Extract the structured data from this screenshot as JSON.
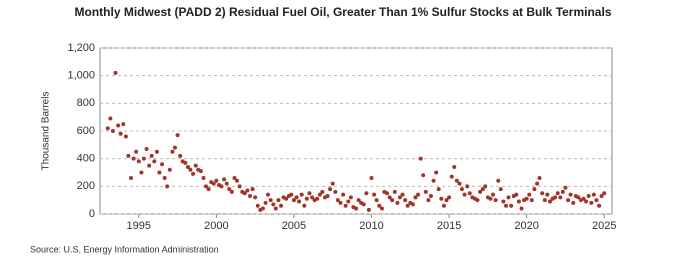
{
  "chart_data": {
    "type": "scatter",
    "title": "Monthly Midwest (PADD 2) Residual Fuel Oil, Greater Than 1% Sulfur Stocks at Bulk Terminals",
    "y_label": "Thousand Barrels",
    "source": "Source: U.S. Energy Information Administration",
    "color": "#a3342a",
    "grid": true,
    "xlim": [
      1992.5,
      2025.5
    ],
    "xticks": [
      1995,
      2000,
      2005,
      2010,
      2015,
      2020,
      2025
    ],
    "ylim": [
      0,
      1200
    ],
    "yticks": [
      0,
      200,
      400,
      600,
      800,
      {
        "value": 1000,
        "label": "1,000"
      },
      {
        "value": 1200,
        "label": "1,200"
      }
    ],
    "x": [
      1993.0,
      1993.17,
      1993.33,
      1993.5,
      1993.67,
      1993.83,
      1994.0,
      1994.17,
      1994.33,
      1994.5,
      1994.67,
      1994.83,
      1995.0,
      1995.17,
      1995.33,
      1995.5,
      1995.67,
      1995.83,
      1996.0,
      1996.17,
      1996.33,
      1996.5,
      1996.67,
      1996.83,
      1997.0,
      1997.17,
      1997.33,
      1997.5,
      1997.67,
      1997.83,
      1998.0,
      1998.17,
      1998.33,
      1998.5,
      1998.67,
      1998.83,
      1999.0,
      1999.17,
      1999.33,
      1999.5,
      1999.67,
      1999.83,
      2000.0,
      2000.17,
      2000.33,
      2000.5,
      2000.67,
      2000.83,
      2001.0,
      2001.17,
      2001.33,
      2001.5,
      2001.67,
      2001.83,
      2002.0,
      2002.17,
      2002.33,
      2002.5,
      2002.67,
      2002.83,
      2003.0,
      2003.17,
      2003.33,
      2003.5,
      2003.67,
      2003.83,
      2004.0,
      2004.17,
      2004.33,
      2004.5,
      2004.67,
      2004.83,
      2005.0,
      2005.17,
      2005.33,
      2005.5,
      2005.67,
      2005.83,
      2006.0,
      2006.17,
      2006.33,
      2006.5,
      2006.67,
      2006.83,
      2007.0,
      2007.17,
      2007.33,
      2007.5,
      2007.67,
      2007.83,
      2008.0,
      2008.17,
      2008.33,
      2008.5,
      2008.67,
      2008.83,
      2009.0,
      2009.17,
      2009.33,
      2009.5,
      2009.67,
      2009.83,
      2010.0,
      2010.17,
      2010.33,
      2010.5,
      2010.67,
      2010.83,
      2011.0,
      2011.17,
      2011.33,
      2011.5,
      2011.67,
      2011.83,
      2012.0,
      2012.17,
      2012.33,
      2012.5,
      2012.67,
      2012.83,
      2013.0,
      2013.17,
      2013.33,
      2013.5,
      2013.67,
      2013.83,
      2014.0,
      2014.17,
      2014.33,
      2014.5,
      2014.67,
      2014.83,
      2015.0,
      2015.17,
      2015.33,
      2015.5,
      2015.67,
      2015.83,
      2016.0,
      2016.17,
      2016.33,
      2016.5,
      2016.67,
      2016.83,
      2017.0,
      2017.17,
      2017.33,
      2017.5,
      2017.67,
      2017.83,
      2018.0,
      2018.17,
      2018.33,
      2018.5,
      2018.67,
      2018.83,
      2019.0,
      2019.17,
      2019.33,
      2019.5,
      2019.67,
      2019.83,
      2020.0,
      2020.17,
      2020.33,
      2020.5,
      2020.67,
      2020.83,
      2021.0,
      2021.17,
      2021.33,
      2021.5,
      2021.67,
      2021.83,
      2022.0,
      2022.17,
      2022.33,
      2022.5,
      2022.67,
      2022.83,
      2023.0,
      2023.17,
      2023.33,
      2023.5,
      2023.67,
      2023.83,
      2024.0,
      2024.17,
      2024.33,
      2024.5,
      2024.67,
      2024.83,
      2025.0
    ],
    "values": [
      620,
      690,
      600,
      1020,
      640,
      580,
      650,
      560,
      420,
      260,
      400,
      450,
      380,
      300,
      400,
      470,
      350,
      420,
      380,
      450,
      300,
      360,
      260,
      200,
      320,
      450,
      480,
      570,
      420,
      380,
      370,
      340,
      320,
      290,
      350,
      320,
      310,
      260,
      200,
      180,
      230,
      220,
      240,
      210,
      200,
      250,
      220,
      180,
      160,
      260,
      240,
      200,
      160,
      150,
      170,
      130,
      180,
      120,
      60,
      30,
      40,
      80,
      140,
      100,
      70,
      40,
      100,
      60,
      120,
      110,
      130,
      140,
      100,
      120,
      90,
      140,
      60,
      110,
      150,
      120,
      100,
      110,
      140,
      160,
      120,
      130,
      180,
      220,
      160,
      100,
      80,
      140,
      60,
      90,
      120,
      50,
      40,
      100,
      80,
      70,
      150,
      30,
      260,
      140,
      100,
      60,
      40,
      160,
      150,
      120,
      100,
      160,
      80,
      120,
      140,
      100,
      60,
      80,
      70,
      120,
      140,
      400,
      280,
      160,
      100,
      130,
      240,
      300,
      180,
      110,
      60,
      100,
      120,
      270,
      340,
      240,
      220,
      180,
      140,
      200,
      150,
      120,
      110,
      100,
      160,
      180,
      200,
      120,
      110,
      140,
      100,
      240,
      180,
      90,
      60,
      120,
      60,
      130,
      140,
      90,
      40,
      100,
      110,
      140,
      100,
      180,
      220,
      260,
      150,
      100,
      140,
      90,
      110,
      120,
      150,
      120,
      160,
      190,
      100,
      140,
      80,
      130,
      120,
      100,
      110,
      90,
      130,
      80,
      140,
      100,
      60,
      130,
      150
    ]
  }
}
